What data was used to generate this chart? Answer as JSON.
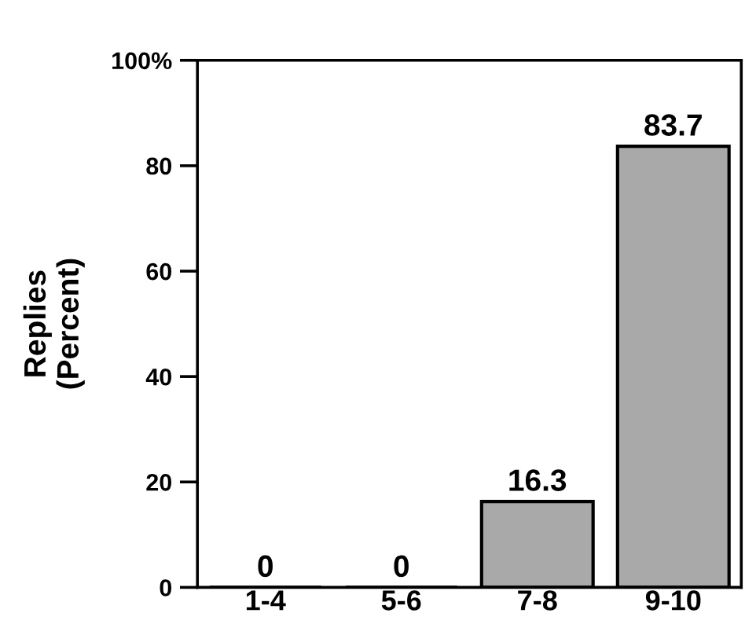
{
  "chart_data": {
    "type": "bar",
    "ylabel": "Replies\n(Percent)",
    "categories": [
      "1-4",
      "5-6",
      "7-8",
      "9-10"
    ],
    "values": [
      0,
      0,
      16.3,
      83.7
    ],
    "color": "#a9a9a9",
    "ylim": [
      0,
      100
    ],
    "yticks": [
      0,
      20,
      40,
      60,
      80,
      {
        "value": 100,
        "label": "100%"
      }
    ],
    "data_labels": true,
    "grid": false,
    "legend": false
  }
}
